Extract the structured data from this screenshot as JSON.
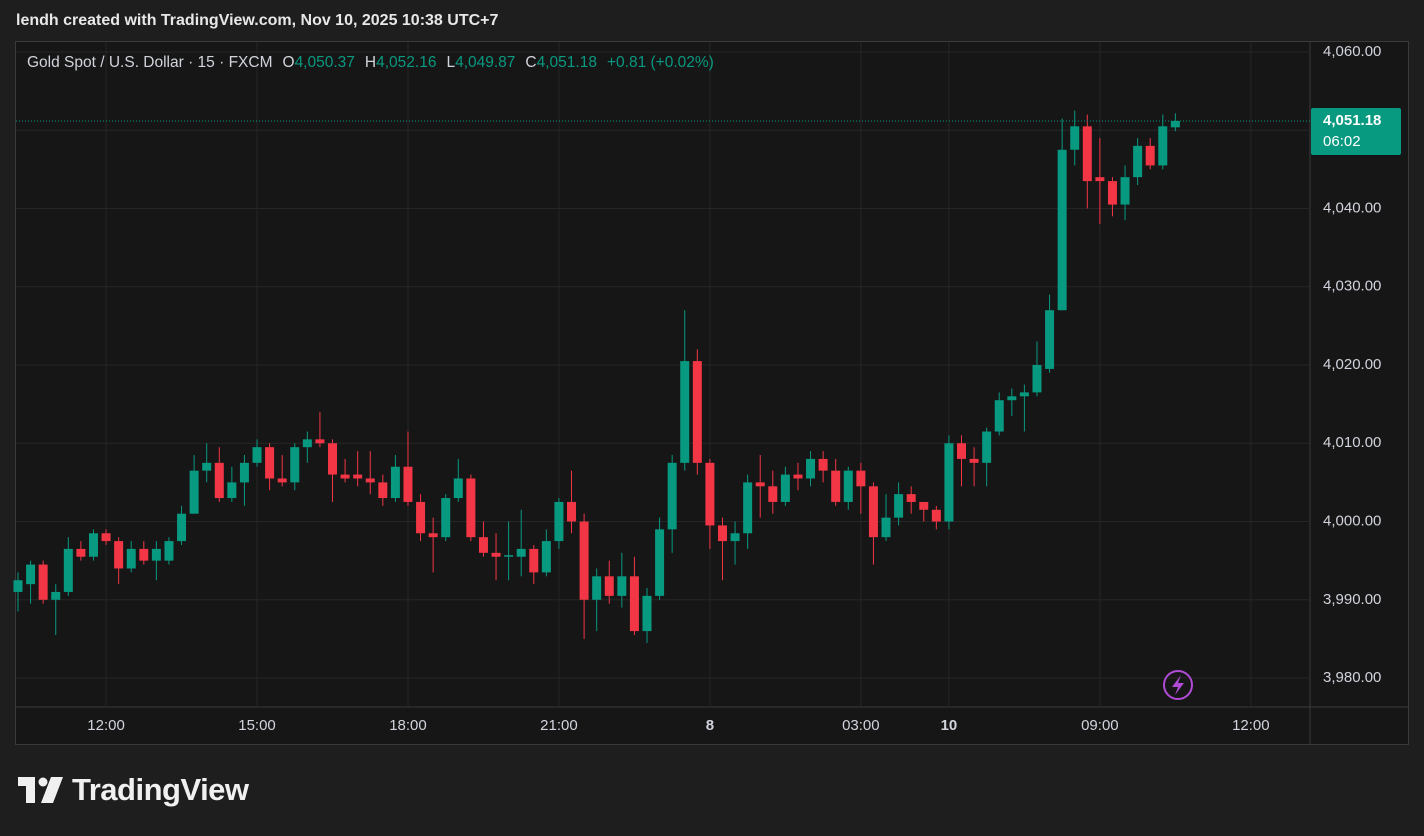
{
  "watermark": "lendh created with TradingView.com, Nov 10, 2025 10:38 UTC+7",
  "brand": "TradingView",
  "chart_data": {
    "type": "candlestick",
    "symbol": "Gold Spot / U.S. Dollar · 15 · FXCM",
    "legend": [
      {
        "key": "O",
        "value": "4,050.37"
      },
      {
        "key": "H",
        "value": "4,052.16"
      },
      {
        "key": "L",
        "value": "4,049.87"
      },
      {
        "key": "C",
        "value": "4,051.18"
      }
    ],
    "change": "+0.81 (+0.02%)",
    "last_price_label": "4,051.18",
    "countdown": "06:02",
    "up_color": "#089981",
    "down_color": "#f23645",
    "grid": true,
    "categories": [
      null,
      null,
      null,
      null,
      null,
      null,
      null,
      "12:00",
      null,
      null,
      null,
      null,
      null,
      null,
      null,
      null,
      null,
      null,
      null,
      "15:00",
      null,
      null,
      null,
      null,
      null,
      null,
      null,
      null,
      null,
      null,
      null,
      "18:00",
      null,
      null,
      null,
      null,
      null,
      null,
      null,
      null,
      null,
      null,
      null,
      "21:00",
      null,
      null,
      null,
      null,
      null,
      null,
      null,
      null,
      null,
      null,
      null,
      "8",
      null,
      null,
      null,
      null,
      null,
      null,
      null,
      null,
      null,
      null,
      null,
      "03:00",
      null,
      null,
      null,
      null,
      null,
      null,
      "10",
      null,
      null,
      null,
      null,
      null,
      null,
      null,
      null,
      null,
      null,
      null,
      "09:00",
      null,
      null,
      null,
      null,
      null,
      null,
      null,
      null,
      null,
      null,
      null,
      "12:00",
      null,
      null,
      null,
      null
    ],
    "open": [
      3991,
      3992,
      3994.5,
      3990,
      3991,
      3996.5,
      3995.5,
      3998.5,
      3997.5,
      3994,
      3996.5,
      3995,
      3995,
      3997.5,
      4001,
      4006.5,
      4007.5,
      4003,
      4005,
      4007.5,
      4009.5,
      4005.5,
      4005,
      4009.5,
      4010.5,
      4010,
      4006,
      4006,
      4005.5,
      4005,
      4003,
      4007,
      4002.5,
      3998.5,
      3998,
      4003,
      4005.5,
      3998,
      3996,
      3995.5,
      3995.5,
      3996.5,
      3993.5,
      3997.5,
      4002.5,
      4000,
      3990,
      3993,
      3990.5,
      3993,
      3986,
      3990.5,
      3999,
      4007.5,
      4020.5,
      4007.5,
      3999.5,
      3997.5,
      3998.5,
      4005,
      4004.5,
      4002.5,
      4006,
      4005.5,
      4008,
      4006.5,
      4002.5,
      4006.5,
      4004.5,
      3998,
      4000.5,
      4003.5,
      4002.5,
      4001.5,
      4000,
      4010,
      4008,
      4007.5,
      4011.5,
      4015.5,
      4016,
      4016.5,
      4019.5,
      4027,
      4047.5,
      4050.5,
      4044,
      4043.5,
      4040.5,
      4044,
      4048,
      4045.5,
      4050.37,
      null,
      null,
      null,
      null,
      null,
      null,
      null,
      null,
      null,
      null
    ],
    "high": [
      3993.5,
      3995,
      3995,
      3992,
      3998,
      3997.5,
      3999,
      3999,
      3998,
      3997.5,
      3997.5,
      3997.5,
      3998,
      4002,
      4008.5,
      4010,
      4009.5,
      4007,
      4008.5,
      4010.5,
      4010,
      4008.5,
      4010,
      4011.5,
      4014,
      4010.5,
      4008,
      4009,
      4009,
      4006,
      4008.5,
      4011.5,
      4003.5,
      4000.5,
      4003.5,
      4008,
      4006,
      4000,
      3998.5,
      4000,
      4001.5,
      3997,
      3999,
      4003,
      4006.5,
      4001,
      3994,
      3995,
      3996,
      3995.5,
      3991.5,
      4000.5,
      4008.5,
      4027,
      4022,
      4008,
      4000.5,
      4000,
      4006,
      4008.5,
      4006.5,
      4007,
      4007.5,
      4009,
      4009,
      4008,
      4007,
      4007.5,
      4005,
      4003.5,
      4005,
      4004.5,
      4002.5,
      4002,
      4011,
      4011,
      4009.5,
      4012,
      4016.5,
      4017,
      4017.5,
      4023,
      4029,
      4051.5,
      4052.5,
      4052,
      4049,
      4044,
      4045.5,
      4049,
      4049,
      4052,
      4052.16,
      null,
      null,
      null,
      null,
      null,
      null,
      null,
      null,
      null,
      null
    ],
    "low": [
      3988.5,
      3989.5,
      3989.5,
      3985.5,
      3990.5,
      3995,
      3995,
      3997,
      3992,
      3993.5,
      3994.5,
      3992.5,
      3994.5,
      3997,
      4001,
      4005,
      4002.5,
      4002.5,
      4002,
      4007,
      4004,
      4004.5,
      4004,
      4007.5,
      4009.5,
      4002.5,
      4005,
      4004.5,
      4003.5,
      4002,
      4002.5,
      4002,
      3997.5,
      3993.5,
      3997.5,
      4002.5,
      3997.5,
      3995.5,
      3992.5,
      3992.5,
      3993,
      3992,
      3993,
      3996.5,
      3998.5,
      3985,
      3986,
      3989.5,
      3989,
      3985.5,
      3984.5,
      3990,
      3996,
      4006.5,
      4006,
      3996.5,
      3992.5,
      3994.5,
      3996.5,
      4000.5,
      4001,
      4002,
      4004,
      4004.5,
      4005,
      4002,
      4001.5,
      4001,
      3994.5,
      3997.5,
      3999.5,
      4001,
      4000,
      3999,
      3999,
      4004.5,
      4004.5,
      4004.5,
      4011,
      4013.5,
      4011.5,
      4016,
      4019,
      4027,
      4045.5,
      4040,
      4038,
      4039,
      4038.5,
      4043,
      4045,
      4045,
      4049.87,
      null,
      null,
      null,
      null,
      null,
      null,
      null,
      null,
      null,
      null
    ],
    "close": [
      3992.5,
      3994.5,
      3990,
      3991,
      3996.5,
      3995.5,
      3998.5,
      3997.5,
      3994,
      3996.5,
      3995,
      3996.5,
      3997.5,
      4001,
      4006.5,
      4007.5,
      4003,
      4005,
      4007.5,
      4009.5,
      4005.5,
      4005,
      4009.5,
      4010.5,
      4010,
      4006,
      4005.5,
      4005.5,
      4005,
      4003,
      4007,
      4002.5,
      3998.5,
      3998,
      4003,
      4005.5,
      3998,
      3996,
      3995.5,
      3995.7,
      3996.5,
      3993.5,
      3997.5,
      4002.5,
      4000,
      3990,
      3993,
      3990.5,
      3993,
      3986,
      3990.5,
      3999,
      4007.5,
      4020.5,
      4007.5,
      3999.5,
      3997.5,
      3998.5,
      4005,
      4004.5,
      4002.5,
      4006,
      4005.5,
      4008,
      4006.5,
      4002.5,
      4006.5,
      4004.5,
      3998,
      4000.5,
      4003.5,
      4002.5,
      4001.5,
      4000,
      4010,
      4008,
      4007.5,
      4011.5,
      4015.5,
      4016,
      4016.5,
      4020,
      4027,
      4047.5,
      4050.5,
      4043.5,
      4043.5,
      4040.5,
      4044,
      4048,
      4045.5,
      4050.5,
      4051.18,
      null,
      null,
      null,
      null,
      null,
      null,
      null,
      null,
      null,
      null
    ],
    "ylim": [
      3976.3,
      4061.4
    ],
    "yticks": [
      {
        "value": 3980,
        "label": "3,980.00"
      },
      {
        "value": 3990,
        "label": "3,990.00"
      },
      {
        "value": 4000,
        "label": "4,000.00"
      },
      {
        "value": 4010,
        "label": "4,010.00"
      },
      {
        "value": 4020,
        "label": "4,020.00"
      },
      {
        "value": 4030,
        "label": "4,030.00"
      },
      {
        "value": 4040,
        "label": "4,040.00"
      },
      {
        "value": 4050,
        "label": "4,050.00"
      },
      {
        "value": 4060,
        "label": "4,060.00"
      }
    ]
  }
}
